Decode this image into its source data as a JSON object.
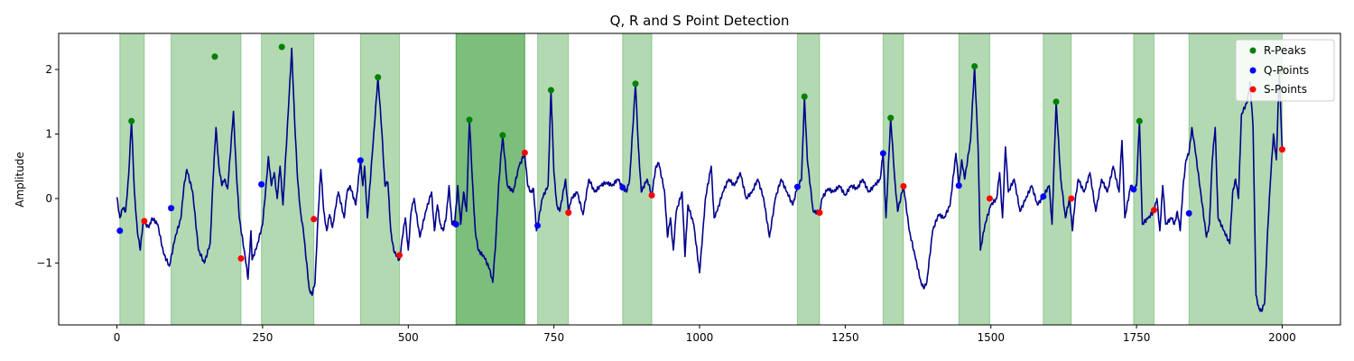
{
  "chart_data": {
    "type": "line",
    "title": "Q, R and S Point Detection",
    "xlabel": "",
    "ylabel": "Amplitude",
    "xlim": [
      -100,
      2100
    ],
    "ylim": [
      -1.96,
      2.56
    ],
    "xticks": [
      0,
      250,
      500,
      750,
      1000,
      1250,
      1500,
      1750,
      2000
    ],
    "yticks": [
      -1,
      0,
      1,
      2
    ],
    "grid": false,
    "legend_position": "top-right",
    "colors": {
      "signal": "#00008b",
      "r_peaks": "#008000",
      "q_points": "#0000ff",
      "s_points": "#ff0000",
      "region": "#008000"
    },
    "signal_anchors": [
      [
        0,
        0.02
      ],
      [
        5,
        -0.3
      ],
      [
        10,
        -0.15
      ],
      [
        15,
        -0.2
      ],
      [
        20,
        0.35
      ],
      [
        25,
        1.2
      ],
      [
        30,
        0.1
      ],
      [
        35,
        -0.5
      ],
      [
        40,
        -0.8
      ],
      [
        45,
        -0.35
      ],
      [
        55,
        -0.45
      ],
      [
        60,
        -0.3
      ],
      [
        70,
        -0.4
      ],
      [
        80,
        -0.85
      ],
      [
        90,
        -1.05
      ],
      [
        100,
        -0.6
      ],
      [
        110,
        -0.3
      ],
      [
        115,
        0.2
      ],
      [
        120,
        0.45
      ],
      [
        130,
        0.1
      ],
      [
        140,
        -0.8
      ],
      [
        150,
        -1.0
      ],
      [
        160,
        -0.7
      ],
      [
        165,
        0.3
      ],
      [
        170,
        1.1
      ],
      [
        175,
        0.5
      ],
      [
        180,
        0.2
      ],
      [
        185,
        0.3
      ],
      [
        190,
        0.15
      ],
      [
        200,
        1.35
      ],
      [
        205,
        0.4
      ],
      [
        210,
        -0.3
      ],
      [
        220,
        -0.9
      ],
      [
        225,
        -1.25
      ],
      [
        230,
        -0.5
      ],
      [
        232,
        -0.95
      ],
      [
        240,
        -0.75
      ],
      [
        250,
        -0.4
      ],
      [
        255,
        0.1
      ],
      [
        260,
        0.65
      ],
      [
        265,
        0.2
      ],
      [
        270,
        0.4
      ],
      [
        275,
        0.0
      ],
      [
        280,
        0.5
      ],
      [
        285,
        -0.1
      ],
      [
        295,
        1.5
      ],
      [
        300,
        2.33
      ],
      [
        305,
        1.2
      ],
      [
        310,
        0.3
      ],
      [
        315,
        -0.2
      ],
      [
        320,
        -0.5
      ],
      [
        330,
        -1.4
      ],
      [
        335,
        -1.5
      ],
      [
        340,
        -1.3
      ],
      [
        345,
        -0.3
      ],
      [
        350,
        0.45
      ],
      [
        355,
        -0.2
      ],
      [
        360,
        -0.5
      ],
      [
        365,
        -0.25
      ],
      [
        370,
        -0.45
      ],
      [
        375,
        -0.15
      ],
      [
        380,
        0.1
      ],
      [
        390,
        -0.3
      ],
      [
        395,
        0.1
      ],
      [
        400,
        0.2
      ],
      [
        410,
        -0.1
      ],
      [
        418,
        0.59
      ],
      [
        422,
        0.2
      ],
      [
        425,
        0.5
      ],
      [
        430,
        -0.3
      ],
      [
        440,
        0.9
      ],
      [
        448,
        1.88
      ],
      [
        455,
        1.0
      ],
      [
        460,
        0.2
      ],
      [
        465,
        0.25
      ],
      [
        470,
        -0.5
      ],
      [
        475,
        -0.8
      ],
      [
        480,
        -0.9
      ],
      [
        485,
        -0.95
      ],
      [
        490,
        -0.6
      ],
      [
        495,
        -0.3
      ],
      [
        500,
        -0.8
      ],
      [
        505,
        -0.2
      ],
      [
        510,
        0.0
      ],
      [
        520,
        -0.6
      ],
      [
        530,
        -0.2
      ],
      [
        540,
        0.1
      ],
      [
        545,
        -0.5
      ],
      [
        550,
        -0.1
      ],
      [
        555,
        -0.4
      ],
      [
        560,
        -0.5
      ],
      [
        565,
        -0.3
      ],
      [
        570,
        0.2
      ],
      [
        575,
        -0.4
      ],
      [
        580,
        -0.35
      ],
      [
        585,
        0.2
      ],
      [
        590,
        -0.4
      ],
      [
        595,
        0.1
      ],
      [
        600,
        -0.2
      ],
      [
        605,
        1.22
      ],
      [
        610,
        0.3
      ],
      [
        615,
        -0.5
      ],
      [
        620,
        -0.8
      ],
      [
        630,
        -0.9
      ],
      [
        640,
        -1.1
      ],
      [
        645,
        -1.3
      ],
      [
        650,
        -0.7
      ],
      [
        655,
        0.2
      ],
      [
        662,
        0.98
      ],
      [
        670,
        0.2
      ],
      [
        680,
        0.1
      ],
      [
        690,
        0.5
      ],
      [
        700,
        0.7
      ],
      [
        705,
        0.2
      ],
      [
        710,
        0.1
      ],
      [
        715,
        0.15
      ],
      [
        720,
        -0.5
      ],
      [
        722,
        -0.42
      ],
      [
        730,
        0.0
      ],
      [
        740,
        0.2
      ],
      [
        745,
        1.68
      ],
      [
        750,
        0.4
      ],
      [
        755,
        -0.1
      ],
      [
        760,
        -0.2
      ],
      [
        770,
        0.3
      ],
      [
        775,
        -0.22
      ],
      [
        780,
        0.0
      ],
      [
        790,
        0.1
      ],
      [
        800,
        -0.25
      ],
      [
        810,
        0.3
      ],
      [
        820,
        0.1
      ],
      [
        830,
        0.2
      ],
      [
        840,
        0.25
      ],
      [
        850,
        0.2
      ],
      [
        860,
        0.3
      ],
      [
        868,
        0.17
      ],
      [
        875,
        0.1
      ],
      [
        880,
        0.3
      ],
      [
        890,
        1.78
      ],
      [
        895,
        0.8
      ],
      [
        900,
        0.1
      ],
      [
        910,
        0.3
      ],
      [
        918,
        0.05
      ],
      [
        925,
        0.5
      ],
      [
        930,
        0.55
      ],
      [
        940,
        0.1
      ],
      [
        945,
        -0.6
      ],
      [
        950,
        -0.3
      ],
      [
        955,
        -0.8
      ],
      [
        960,
        -0.2
      ],
      [
        970,
        0.1
      ],
      [
        975,
        -0.9
      ],
      [
        980,
        -0.1
      ],
      [
        990,
        -0.4
      ],
      [
        1000,
        -1.15
      ],
      [
        1005,
        -0.6
      ],
      [
        1010,
        0.0
      ],
      [
        1020,
        0.5
      ],
      [
        1025,
        -0.3
      ],
      [
        1030,
        -0.2
      ],
      [
        1040,
        0.1
      ],
      [
        1050,
        0.3
      ],
      [
        1060,
        0.2
      ],
      [
        1070,
        0.4
      ],
      [
        1080,
        0.0
      ],
      [
        1090,
        0.1
      ],
      [
        1100,
        0.3
      ],
      [
        1110,
        0.0
      ],
      [
        1120,
        -0.6
      ],
      [
        1130,
        0.0
      ],
      [
        1140,
        0.3
      ],
      [
        1150,
        0.1
      ],
      [
        1160,
        -0.1
      ],
      [
        1168,
        0.18
      ],
      [
        1175,
        0.3
      ],
      [
        1180,
        1.58
      ],
      [
        1185,
        0.6
      ],
      [
        1195,
        -0.2
      ],
      [
        1206,
        -0.22
      ],
      [
        1210,
        0.0
      ],
      [
        1220,
        0.15
      ],
      [
        1230,
        0.1
      ],
      [
        1240,
        0.2
      ],
      [
        1250,
        0.05
      ],
      [
        1260,
        0.2
      ],
      [
        1270,
        0.15
      ],
      [
        1280,
        0.3
      ],
      [
        1290,
        0.1
      ],
      [
        1300,
        0.2
      ],
      [
        1310,
        0.3
      ],
      [
        1315,
        0.7
      ],
      [
        1320,
        -0.3
      ],
      [
        1328,
        1.25
      ],
      [
        1335,
        0.3
      ],
      [
        1340,
        -0.2
      ],
      [
        1350,
        0.2
      ],
      [
        1360,
        -0.5
      ],
      [
        1370,
        -0.9
      ],
      [
        1380,
        -1.3
      ],
      [
        1385,
        -1.4
      ],
      [
        1390,
        -1.3
      ],
      [
        1400,
        -0.5
      ],
      [
        1410,
        -0.25
      ],
      [
        1420,
        -0.3
      ],
      [
        1430,
        -0.1
      ],
      [
        1440,
        0.7
      ],
      [
        1445,
        0.2
      ],
      [
        1450,
        0.6
      ],
      [
        1455,
        0.3
      ],
      [
        1465,
        0.9
      ],
      [
        1472,
        2.05
      ],
      [
        1478,
        0.8
      ],
      [
        1482,
        -0.8
      ],
      [
        1490,
        -0.4
      ],
      [
        1500,
        -0.1
      ],
      [
        1510,
        0.0
      ],
      [
        1515,
        0.4
      ],
      [
        1520,
        -0.3
      ],
      [
        1525,
        0.8
      ],
      [
        1530,
        0.1
      ],
      [
        1540,
        0.3
      ],
      [
        1550,
        -0.2
      ],
      [
        1560,
        0.0
      ],
      [
        1570,
        0.2
      ],
      [
        1580,
        -0.1
      ],
      [
        1590,
        0.03
      ],
      [
        1600,
        0.2
      ],
      [
        1605,
        -0.4
      ],
      [
        1612,
        1.5
      ],
      [
        1620,
        0.3
      ],
      [
        1628,
        -0.3
      ],
      [
        1635,
        0.0
      ],
      [
        1640,
        -0.5
      ],
      [
        1645,
        0.0
      ],
      [
        1650,
        0.3
      ],
      [
        1660,
        0.1
      ],
      [
        1670,
        0.4
      ],
      [
        1680,
        -0.2
      ],
      [
        1690,
        0.3
      ],
      [
        1700,
        0.1
      ],
      [
        1710,
        0.5
      ],
      [
        1720,
        0.1
      ],
      [
        1725,
        0.9
      ],
      [
        1730,
        -0.3
      ],
      [
        1740,
        0.2
      ],
      [
        1745,
        0.14
      ],
      [
        1750,
        0.2
      ],
      [
        1755,
        1.2
      ],
      [
        1760,
        -0.4
      ],
      [
        1770,
        -0.3
      ],
      [
        1780,
        -0.2
      ],
      [
        1785,
        0.0
      ],
      [
        1790,
        -0.5
      ],
      [
        1795,
        0.2
      ],
      [
        1800,
        -0.4
      ],
      [
        1810,
        -0.3
      ],
      [
        1815,
        -0.4
      ],
      [
        1820,
        -0.2
      ],
      [
        1825,
        -0.5
      ],
      [
        1830,
        0.2
      ],
      [
        1835,
        0.6
      ],
      [
        1840,
        0.7
      ],
      [
        1845,
        1.1
      ],
      [
        1850,
        0.8
      ],
      [
        1860,
        0.1
      ],
      [
        1870,
        -0.6
      ],
      [
        1875,
        -0.4
      ],
      [
        1880,
        0.6
      ],
      [
        1885,
        1.1
      ],
      [
        1890,
        -0.3
      ],
      [
        1900,
        -0.5
      ],
      [
        1910,
        -0.7
      ],
      [
        1915,
        0.1
      ],
      [
        1920,
        0.3
      ],
      [
        1925,
        0.0
      ],
      [
        1930,
        1.3
      ],
      [
        1940,
        1.5
      ],
      [
        1945,
        1.8
      ],
      [
        1950,
        1.1
      ],
      [
        1955,
        -1.5
      ],
      [
        1960,
        -1.7
      ],
      [
        1965,
        -1.75
      ],
      [
        1970,
        -1.6
      ],
      [
        1975,
        -0.5
      ],
      [
        1980,
        0.3
      ],
      [
        1985,
        1.0
      ],
      [
        1990,
        0.6
      ],
      [
        1995,
        1.95
      ],
      [
        2000,
        0.76
      ]
    ],
    "r_peaks": {
      "name": "R-Peaks",
      "x": [
        25,
        168,
        283,
        448,
        605,
        662,
        745,
        890,
        1180,
        1328,
        1472,
        1612,
        1755,
        2000
      ],
      "y": [
        1.2,
        2.2,
        2.35,
        1.88,
        1.22,
        0.98,
        1.68,
        1.78,
        1.58,
        1.25,
        2.05,
        1.5,
        1.2,
        1.97
      ]
    },
    "q_points": {
      "name": "Q-Points",
      "x": [
        5,
        93,
        248,
        418,
        582,
        722,
        868,
        1168,
        1315,
        1445,
        1590,
        1745,
        1840
      ],
      "y": [
        -0.5,
        -0.15,
        0.22,
        0.59,
        -0.4,
        -0.42,
        0.17,
        0.18,
        0.7,
        0.2,
        0.03,
        0.14,
        -0.23
      ]
    },
    "s_points": {
      "name": "S-Points",
      "x": [
        47,
        213,
        338,
        485,
        700,
        775,
        918,
        1206,
        1350,
        1498,
        1638,
        1780,
        2000
      ],
      "y": [
        -0.35,
        -0.93,
        -0.32,
        -0.88,
        0.71,
        -0.22,
        0.05,
        -0.22,
        0.19,
        0.0,
        0.0,
        -0.18,
        0.76
      ]
    },
    "regions": [
      [
        5,
        47
      ],
      [
        93,
        213
      ],
      [
        248,
        338
      ],
      [
        418,
        485
      ],
      [
        582,
        700
      ],
      [
        582,
        700
      ],
      [
        722,
        775
      ],
      [
        868,
        918
      ],
      [
        1168,
        1206
      ],
      [
        1315,
        1350
      ],
      [
        1445,
        1498
      ],
      [
        1590,
        1638
      ],
      [
        1745,
        1780
      ],
      [
        1840,
        2000
      ]
    ]
  }
}
